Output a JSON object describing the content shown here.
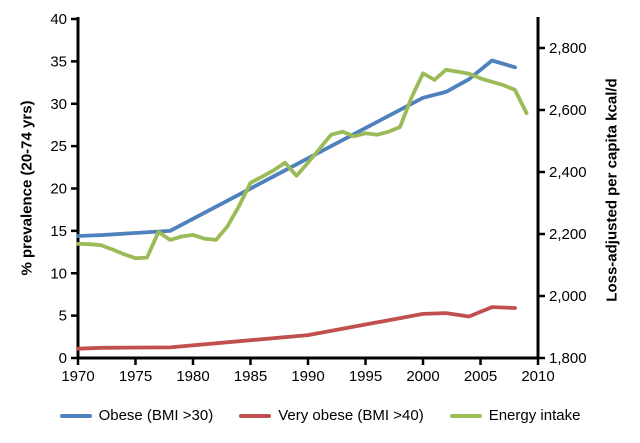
{
  "chart_data": {
    "type": "line",
    "title": "",
    "xlabel": "",
    "ylabel_left": "% prevalence (20-74 yrs)",
    "ylabel_right": "Loss-adjusted per capita kcal/d",
    "x_axis": {
      "min": 1970,
      "max": 2010,
      "tick_step": 5,
      "tick_labels": [
        "1970",
        "1975",
        "1980",
        "1985",
        "1990",
        "1995",
        "2000",
        "2005",
        "2010"
      ]
    },
    "y_left_axis": {
      "min": 0,
      "max": 40,
      "tick_step": 5,
      "tick_labels": [
        "0",
        "5",
        "10",
        "15",
        "20",
        "25",
        "30",
        "35",
        "40"
      ]
    },
    "y_right_axis": {
      "min": 1800,
      "max": 2800,
      "tick_step": 200,
      "tick_labels": [
        "1,800",
        "2,000",
        "2,200",
        "2,400",
        "2,600",
        "2,800"
      ]
    },
    "grid": false,
    "legend_position": "bottom",
    "series": [
      {
        "name": "Obese (BMI >30)",
        "axis": "left",
        "color": "#4F81BD",
        "points": [
          [
            1970,
            14.4
          ],
          [
            1972,
            14.5
          ],
          [
            1978,
            15.0
          ],
          [
            2000,
            30.7
          ],
          [
            2002,
            31.4
          ],
          [
            2004,
            32.9
          ],
          [
            2006,
            35.1
          ],
          [
            2008,
            34.3
          ]
        ]
      },
      {
        "name": "Very obese (BMI >40)",
        "axis": "left",
        "color": "#C0504D",
        "points": [
          [
            1970,
            1.1
          ],
          [
            1972,
            1.2
          ],
          [
            1978,
            1.25
          ],
          [
            1990,
            2.7
          ],
          [
            2000,
            5.2
          ],
          [
            2002,
            5.3
          ],
          [
            2004,
            4.9
          ],
          [
            2006,
            6.0
          ],
          [
            2008,
            5.9
          ]
        ]
      },
      {
        "name": "Energy intake",
        "axis": "right",
        "color": "#9BBB59",
        "points": [
          [
            1970,
            2168
          ],
          [
            1971,
            2167
          ],
          [
            1972,
            2164
          ],
          [
            1973,
            2150
          ],
          [
            1974,
            2135
          ],
          [
            1975,
            2122
          ],
          [
            1976,
            2124
          ],
          [
            1977,
            2207
          ],
          [
            1978,
            2181
          ],
          [
            1979,
            2192
          ],
          [
            1980,
            2197
          ],
          [
            1981,
            2185
          ],
          [
            1982,
            2181
          ],
          [
            1983,
            2225
          ],
          [
            1984,
            2290
          ],
          [
            1985,
            2365
          ],
          [
            1986,
            2385
          ],
          [
            1987,
            2405
          ],
          [
            1988,
            2430
          ],
          [
            1989,
            2388
          ],
          [
            1990,
            2430
          ],
          [
            1991,
            2475
          ],
          [
            1992,
            2520
          ],
          [
            1993,
            2530
          ],
          [
            1994,
            2515
          ],
          [
            1995,
            2525
          ],
          [
            1996,
            2520
          ],
          [
            1997,
            2530
          ],
          [
            1998,
            2545
          ],
          [
            1999,
            2640
          ],
          [
            2000,
            2718
          ],
          [
            2001,
            2697
          ],
          [
            2002,
            2730
          ],
          [
            2003,
            2724
          ],
          [
            2004,
            2717
          ],
          [
            2005,
            2702
          ],
          [
            2006,
            2691
          ],
          [
            2007,
            2680
          ],
          [
            2008,
            2665
          ],
          [
            2009,
            2590
          ]
        ]
      }
    ],
    "colors": {
      "axis": "#000000",
      "text": "#000000",
      "background": "#FFFFFF"
    }
  }
}
